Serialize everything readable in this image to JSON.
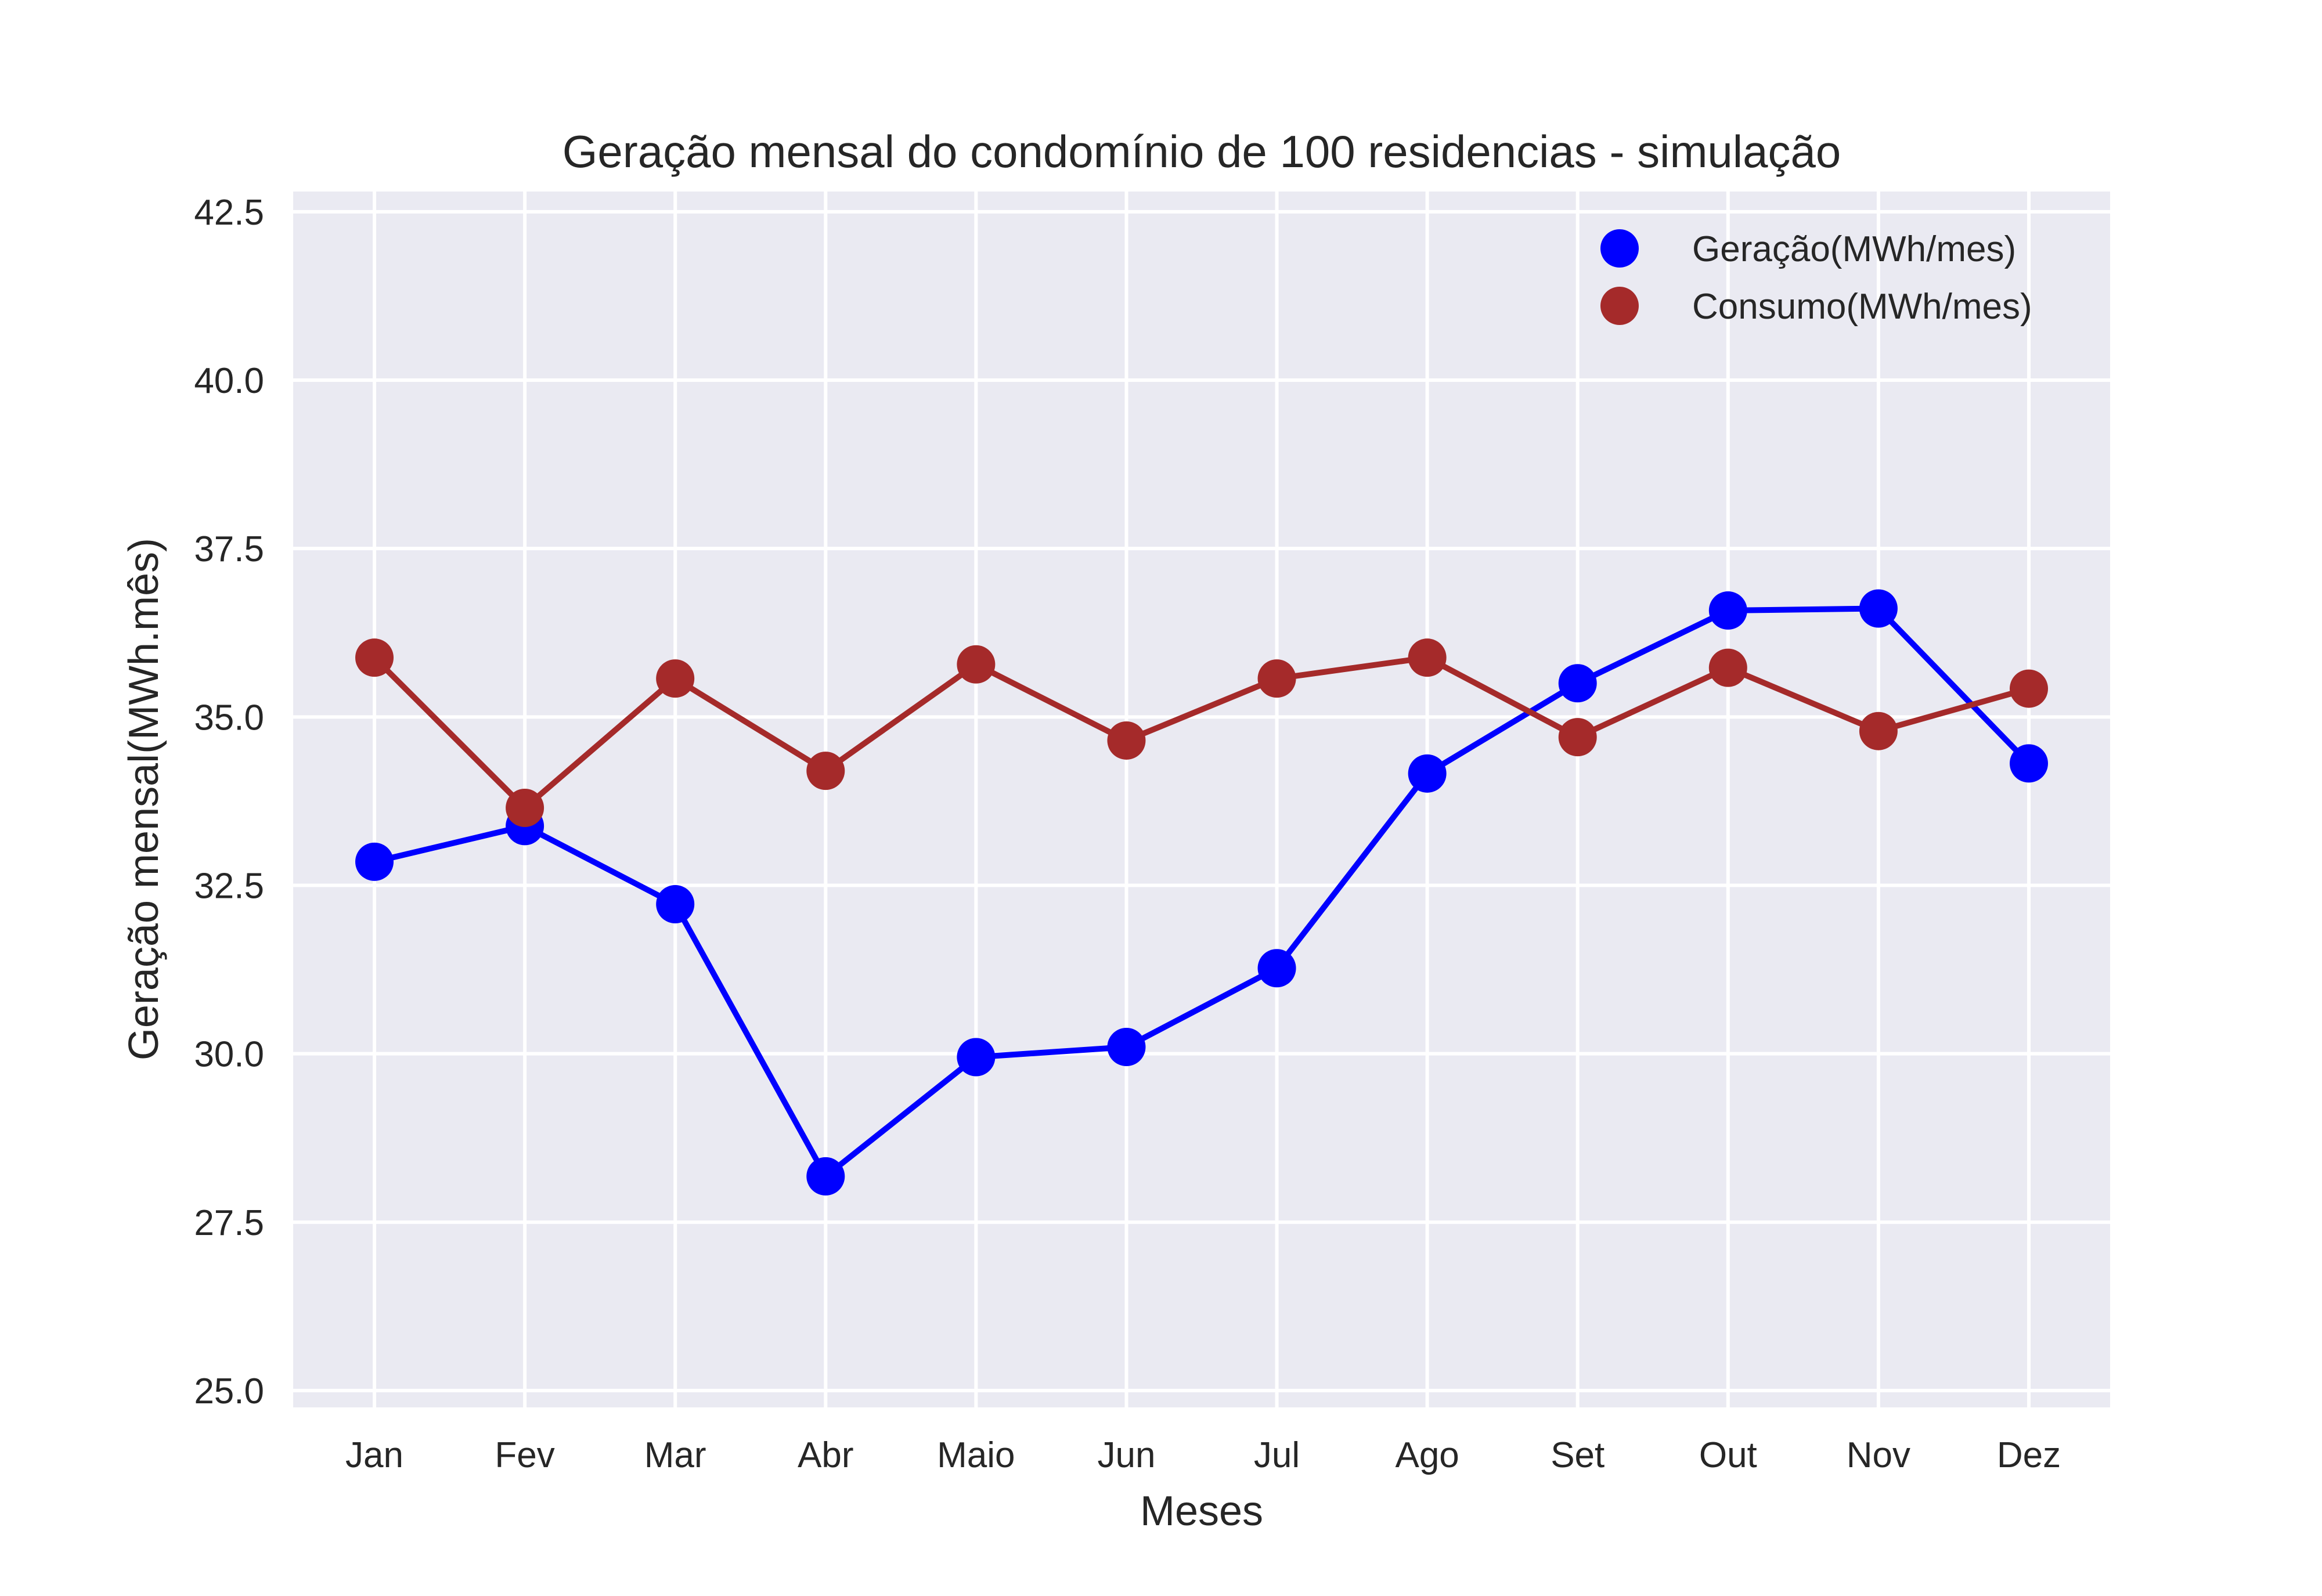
{
  "chart_data": {
    "type": "line",
    "title": "Geração mensal do condomínio de 100 residencias - simulação",
    "xlabel": "Meses",
    "ylabel": "Geração mensal(MWh.mês)",
    "categories": [
      "Jan",
      "Fev",
      "Mar",
      "Abr",
      "Maio",
      "Jun",
      "Jul",
      "Ago",
      "Set",
      "Out",
      "Nov",
      "Dez"
    ],
    "ylim": [
      24.75,
      42.8
    ],
    "yticks": [
      25.0,
      27.5,
      30.0,
      32.5,
      35.0,
      37.5,
      40.0,
      42.5
    ],
    "ytick_labels": [
      "25.0",
      "27.5",
      "30.0",
      "32.5",
      "35.0",
      "37.5",
      "40.0",
      "42.5"
    ],
    "grid": true,
    "legend_position": "top-right",
    "background": "#eaeaf2",
    "series": [
      {
        "name": "Geração(MWh/mes)",
        "color": "#0000ff",
        "values": [
          32.85,
          33.38,
          32.22,
          28.18,
          29.95,
          30.1,
          31.27,
          34.16,
          35.5,
          36.58,
          36.61,
          34.31
        ]
      },
      {
        "name": "Consumo(MWh/mes)",
        "color": "#a52a2a",
        "values": [
          35.88,
          33.65,
          35.57,
          34.2,
          35.78,
          34.65,
          35.57,
          35.88,
          34.7,
          35.73,
          34.79,
          35.42
        ]
      }
    ]
  }
}
